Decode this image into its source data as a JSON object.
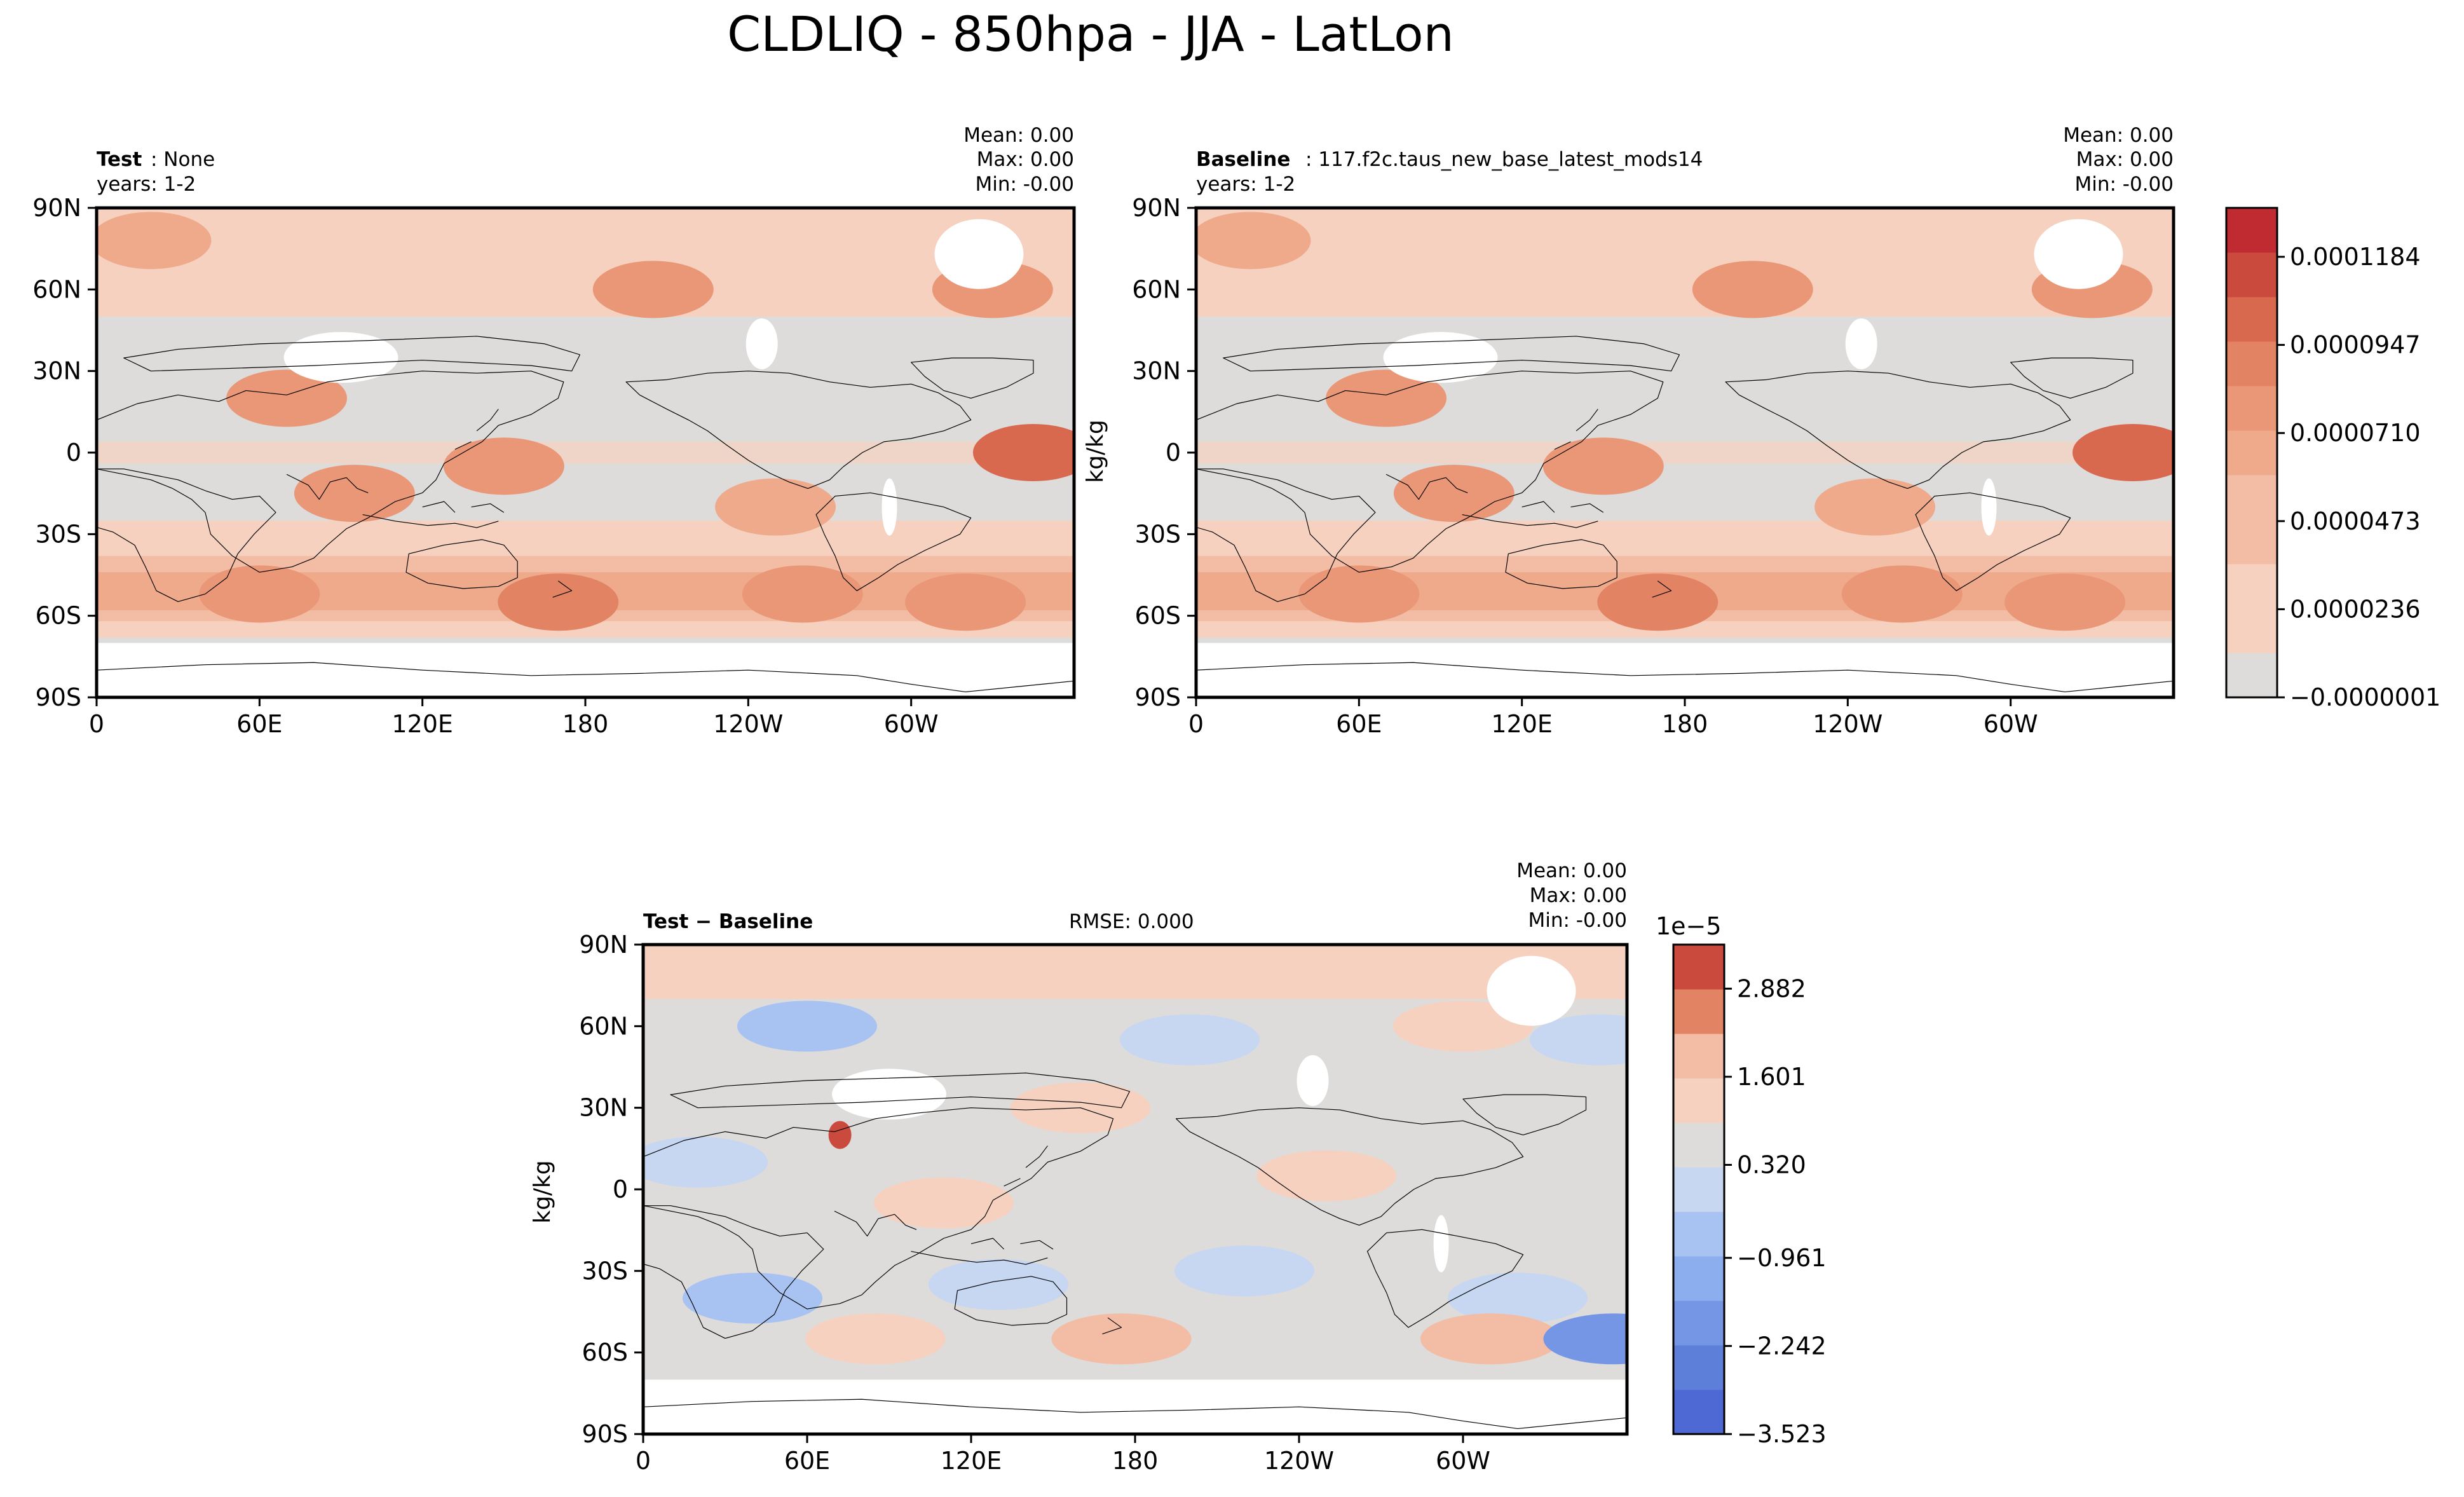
{
  "figure_title": "CLDLIQ - 850hpa - JJA - LatLon",
  "colors": {
    "gray": "#dddcdb",
    "reds": [
      "#f6d1bf",
      "#f3bca4",
      "#eeaa8b",
      "#e99777",
      "#e28464",
      "#d8694f",
      "#ca4b3e",
      "#bf2b31"
    ],
    "blues": [
      "#c7d6f1",
      "#a8c3f2",
      "#8caeef",
      "#7496e4",
      "#5e7fd9",
      "#4e68d4"
    ]
  },
  "chart_data": [
    {
      "type": "heatmap",
      "panel": "test",
      "label_bold": "Test",
      "label_rest": ": None",
      "years": "years: 1-2",
      "stats": {
        "mean": "Mean:  0.00",
        "max": "Max:  0.00",
        "min": "Min: -0.00"
      },
      "ylabel": "",
      "xticks": [
        "0",
        "60E",
        "120E",
        "180",
        "120W",
        "60W"
      ],
      "yticks": [
        "90N",
        "60N",
        "30N",
        "0",
        "30S",
        "60S",
        "90S"
      ],
      "xlim": [
        0,
        360
      ],
      "ylim": [
        -90,
        90
      ],
      "field_regions": [
        {
          "lon": 20,
          "lat": 78,
          "level": 2
        },
        {
          "lon": 330,
          "lat": 60,
          "level": 3
        },
        {
          "lon": 205,
          "lat": 60,
          "level": 3
        },
        {
          "lon": 345,
          "lat": 0,
          "level": 5
        },
        {
          "lon": 70,
          "lat": 20,
          "level": 3
        },
        {
          "lon": 95,
          "lat": -15,
          "level": 3
        },
        {
          "lon": 170,
          "lat": -55,
          "level": 4
        },
        {
          "lon": 60,
          "lat": -52,
          "level": 3
        },
        {
          "lon": 260,
          "lat": -52,
          "level": 3
        },
        {
          "lon": 320,
          "lat": -55,
          "level": 3
        },
        {
          "lon": 250,
          "lat": -20,
          "level": 2
        },
        {
          "lon": 150,
          "lat": -5,
          "level": 3
        }
      ]
    },
    {
      "type": "heatmap",
      "panel": "baseline",
      "label_bold": "Baseline",
      "label_rest": ": 117.f2c.taus_new_base_latest_mods14",
      "years": "years: 1-2",
      "stats": {
        "mean": "Mean:  0.00",
        "max": "Max:  0.00",
        "min": "Min: -0.00"
      },
      "ylabel": "kg/kg",
      "xticks": [
        "0",
        "60E",
        "120E",
        "180",
        "120W",
        "60W"
      ],
      "yticks": [
        "90N",
        "60N",
        "30N",
        "0",
        "30S",
        "60S",
        "90S"
      ],
      "xlim": [
        0,
        360
      ],
      "ylim": [
        -90,
        90
      ],
      "colorbar": {
        "labels": [
          "0.0001184",
          "0.0000947",
          "0.0000710",
          "0.0000473",
          "0.0000236",
          "−0.0000001"
        ],
        "levels": 11
      },
      "field_regions": [
        {
          "lon": 20,
          "lat": 78,
          "level": 2
        },
        {
          "lon": 330,
          "lat": 60,
          "level": 3
        },
        {
          "lon": 205,
          "lat": 60,
          "level": 3
        },
        {
          "lon": 345,
          "lat": 0,
          "level": 5
        },
        {
          "lon": 70,
          "lat": 20,
          "level": 3
        },
        {
          "lon": 95,
          "lat": -15,
          "level": 3
        },
        {
          "lon": 170,
          "lat": -55,
          "level": 4
        },
        {
          "lon": 60,
          "lat": -52,
          "level": 3
        },
        {
          "lon": 260,
          "lat": -52,
          "level": 3
        },
        {
          "lon": 320,
          "lat": -55,
          "level": 3
        },
        {
          "lon": 250,
          "lat": -20,
          "level": 2
        },
        {
          "lon": 150,
          "lat": -5,
          "level": 3
        }
      ]
    },
    {
      "type": "heatmap",
      "panel": "difference",
      "label_bold": "Test − Baseline",
      "rmse": "RMSE: 0.000",
      "stats": {
        "mean": "Mean:  0.00",
        "max": "Max:  0.00",
        "min": "Min: -0.00"
      },
      "ylabel": "kg/kg",
      "xticks": [
        "0",
        "60E",
        "120E",
        "180",
        "120W",
        "60W"
      ],
      "yticks": [
        "90N",
        "60N",
        "30N",
        "0",
        "30S",
        "60S",
        "90S"
      ],
      "xlim": [
        0,
        360
      ],
      "ylim": [
        -90,
        90
      ],
      "colorbar": {
        "offset": "1e−5",
        "labels": [
          "2.882",
          "1.601",
          "0.320",
          "−0.961",
          "−2.242",
          "−3.523"
        ],
        "levels": 11
      }
    }
  ]
}
